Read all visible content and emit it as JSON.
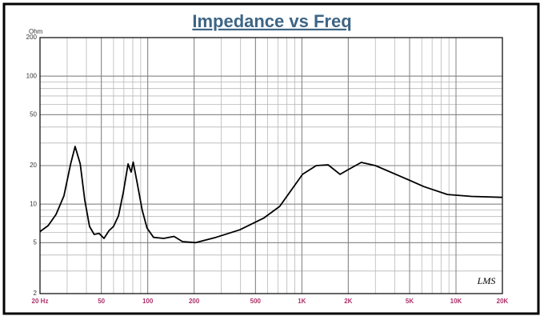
{
  "chart_data": {
    "type": "line",
    "title": "Impedance vs Freq",
    "y_label": "Ohm",
    "annotation": "LMS",
    "x": [
      20,
      22.6,
      25.4,
      28.6,
      31.6,
      33.8,
      36.5,
      39,
      41.9,
      44.9,
      48.4,
      52,
      56,
      60,
      64.6,
      69.5,
      74.6,
      78,
      80.5,
      85.6,
      92,
      99,
      109,
      127,
      148,
      168,
      205,
      277,
      395,
      568,
      718,
      1010,
      1240,
      1480,
      1770,
      2000,
      2430,
      3000,
      4300,
      6200,
      8800,
      12600,
      20000
    ],
    "values": [
      6.1,
      6.8,
      8.3,
      11.6,
      20.6,
      28.2,
      20.6,
      10.8,
      6.7,
      5.8,
      5.9,
      5.4,
      6.2,
      6.7,
      8.1,
      12.4,
      20.6,
      17.8,
      21.3,
      14.4,
      9.0,
      6.5,
      5.5,
      5.4,
      5.6,
      5.1,
      5.0,
      5.5,
      6.3,
      7.8,
      9.6,
      17.1,
      20,
      20.3,
      17.1,
      18.6,
      21.2,
      20,
      16.6,
      13.7,
      11.9,
      11.5,
      11.3
    ],
    "color": "#000000",
    "xscale": "log",
    "yscale": "log",
    "grid": true,
    "xlim": [
      20,
      20000
    ],
    "ylim": [
      2,
      200
    ],
    "xticks": [
      {
        "value": 20,
        "label": "20 Hz"
      },
      50,
      100,
      200,
      500,
      {
        "value": 1000,
        "label": "1K"
      },
      {
        "value": 2000,
        "label": "2K"
      },
      {
        "value": 5000,
        "label": "5K"
      },
      {
        "value": 10000,
        "label": "10K"
      },
      {
        "value": 20000,
        "label": "20K"
      }
    ],
    "yticks": [
      2,
      5,
      10,
      20,
      50,
      100,
      200
    ]
  }
}
